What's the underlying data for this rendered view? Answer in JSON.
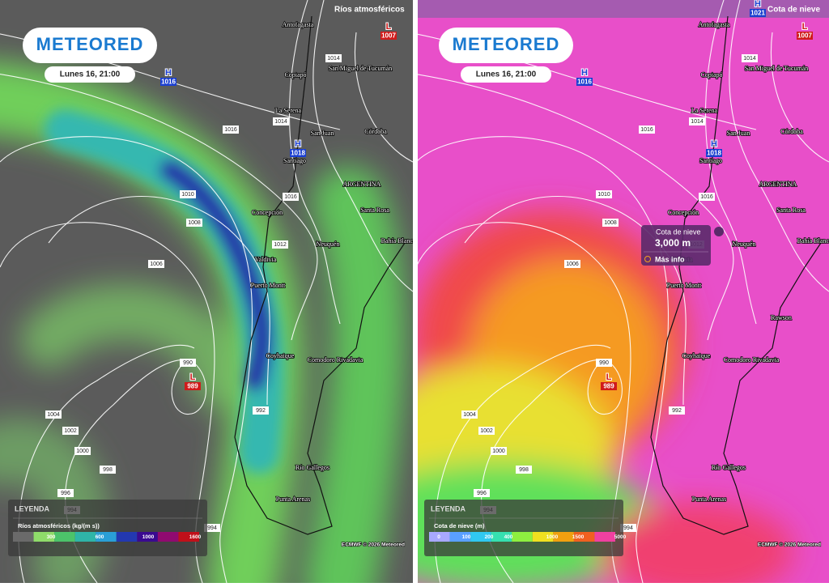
{
  "panels": [
    {
      "layer": "Ríos atmosféricos",
      "logo": "METEORED",
      "time": "Lunes 16, 21:00",
      "pressure_centers": [
        {
          "type": "H",
          "value": "1016"
        },
        {
          "type": "H",
          "value": "1018"
        },
        {
          "type": "L",
          "value": "1007"
        },
        {
          "type": "L",
          "value": "989"
        }
      ],
      "cities": [
        "Antofagasta",
        "San Miguel de Tucumán",
        "Copiapó",
        "La Serena",
        "San Juan",
        "Córdoba",
        "Santiago",
        "ARGENTINA",
        "Concepción",
        "Santa Rosa",
        "Neuquén",
        "Bahía Blanca",
        "Valdivia",
        "Puerto Montt",
        "Coyhaique",
        "Comodoro Rivadavia",
        "Río Gallegos",
        "Punta Arenas"
      ],
      "isobar_labels": [
        "1014",
        "1016",
        "1014",
        "1016",
        "1012",
        "1010",
        "1008",
        "1006",
        "1004",
        "1002",
        "1000",
        "998",
        "996",
        "994",
        "994",
        "992",
        "990"
      ],
      "legend": {
        "title": "LEYENDA",
        "label": "Ríos atmosféricos (kg/(m s))",
        "ticks": [
          "300",
          "600",
          "1000",
          "1600"
        ]
      },
      "credit": "ECMWF © 2026 Meteored"
    },
    {
      "layer": "Cota de nieve",
      "logo": "METEORED",
      "time": "Lunes 16, 21:00",
      "pressure_centers": [
        {
          "type": "H",
          "value": "1016"
        },
        {
          "type": "H",
          "value": "1018"
        },
        {
          "type": "L",
          "value": "1007"
        },
        {
          "type": "L",
          "value": "989"
        },
        {
          "type": "H",
          "value": "1021"
        }
      ],
      "cities": [
        "Antofagasta",
        "San Miguel de Tucumán",
        "Copiapó",
        "La Serena",
        "San Juan",
        "Córdoba",
        "Santiago",
        "ARGENTINA",
        "Concepción",
        "Santa Rosa",
        "Neuquén",
        "Bahía Blanca",
        "Valdivia",
        "Puerto Montt",
        "Coyhaique",
        "Comodoro Rivadavia",
        "Río Gallegos",
        "Punta Arenas",
        "Rawson"
      ],
      "isobar_labels": [
        "1014",
        "1016",
        "1014",
        "1016",
        "1012",
        "1010",
        "1008",
        "1006",
        "1004",
        "1002",
        "1000",
        "998",
        "996",
        "994",
        "994",
        "992",
        "990"
      ],
      "legend": {
        "title": "LEYENDA",
        "label": "Cota de nieve (m)",
        "ticks": [
          "0",
          "100",
          "200",
          "400",
          "1000",
          "1500",
          "5000"
        ]
      },
      "popup": {
        "title": "Cota de nieve",
        "value": "3,000 m",
        "link": "Más info"
      },
      "credit": "ECMWF © 2026 Meteored"
    }
  ]
}
